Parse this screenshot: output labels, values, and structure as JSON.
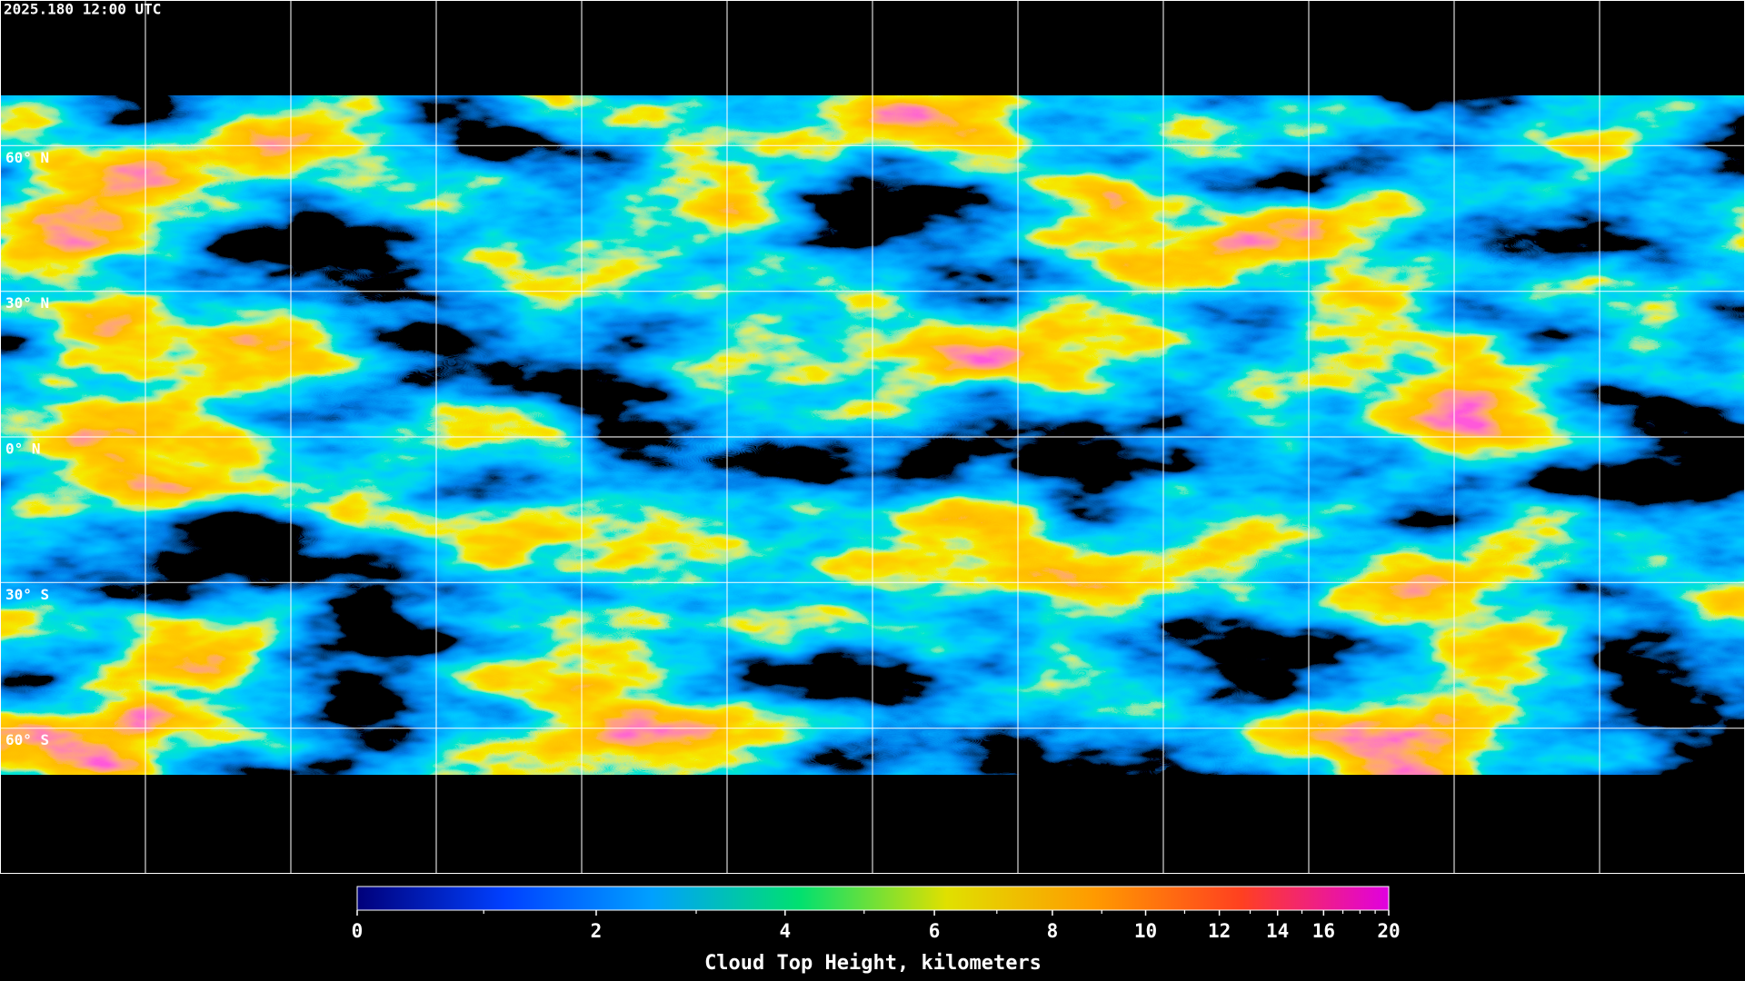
{
  "timestamp": "2025.180 12:00 UTC",
  "map": {
    "xlim": [
      -180,
      180
    ],
    "ylim": [
      -90,
      90
    ],
    "lon_lines": [
      -150,
      -120,
      -90,
      -60,
      -30,
      0,
      30,
      60,
      90,
      120,
      150
    ],
    "lat_lines": [
      {
        "value": 60,
        "label": "60° N"
      },
      {
        "value": 30,
        "label": "30° N"
      },
      {
        "value": 0,
        "label": "0° N"
      },
      {
        "value": -30,
        "label": "30° S"
      },
      {
        "value": -60,
        "label": "60° S"
      }
    ]
  },
  "colorbar": {
    "title": "Cloud Top Height, kilometers",
    "range": [
      0,
      20
    ],
    "ticks": [
      0,
      2,
      4,
      6,
      8,
      10,
      12,
      14,
      16,
      20
    ],
    "minor_ticks": [
      1,
      3,
      5,
      7,
      9,
      11,
      13,
      15,
      17,
      18,
      19
    ],
    "colors": [
      "#00007a",
      "#0040ff",
      "#00a0ff",
      "#00e070",
      "#e0e000",
      "#ff9a00",
      "#ff4020",
      "#e000e0"
    ]
  }
}
